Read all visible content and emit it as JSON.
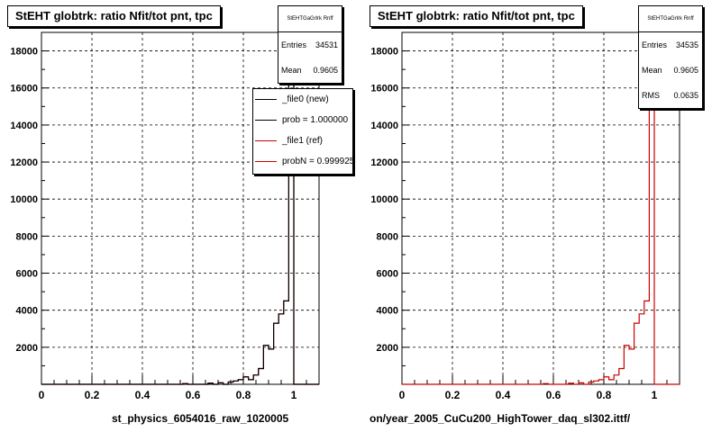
{
  "colors": {
    "new": "#000000",
    "ref": "#cc0000"
  },
  "footer_text": "",
  "pads": [
    {
      "title": "StEHT globtrk: ratio Nfit/tot pnt, tpc",
      "stats": {
        "header": "StEHTGaGrlrk Rnff",
        "rows": [
          {
            "label": "Entries",
            "value": "34531"
          },
          {
            "label": "Mean",
            "value": "0.9605"
          }
        ]
      },
      "legend": [
        {
          "label": "_file0 (new)",
          "color": "#000000"
        },
        {
          "label": "prob = 1.000000",
          "color": "#000000"
        },
        {
          "label": "_file1 (ref)",
          "color": "#cc0000"
        },
        {
          "label": "probN = 0.999925",
          "color": "#cc0000"
        }
      ],
      "xtitle": "st_physics_6054016_raw_1020005"
    },
    {
      "title": "StEHT globtrk: ratio Nfit/tot pnt, tpc",
      "stats": {
        "header": "StEHTGaGrlrk Rnff",
        "rows": [
          {
            "label": "Entries",
            "value": "34535"
          },
          {
            "label": "Mean",
            "value": "0.9605"
          },
          {
            "label": "RMS",
            "value": "0.0635"
          }
        ]
      },
      "legend": [],
      "xtitle": "on/year_2005_CuCu200_HighTower_daq_sl302.ittf/"
    }
  ],
  "chart_data": [
    {
      "type": "bar",
      "title": "StEHT globtrk: ratio Nfit/tot pnt, tpc",
      "xlabel": "st_physics_6054016_raw_1020005",
      "ylabel": "",
      "xlim": [
        0,
        1.1
      ],
      "ylim": [
        0,
        19000
      ],
      "xticks": [
        0,
        0.2,
        0.4,
        0.6,
        0.8,
        1
      ],
      "xtick_labels": [
        "0",
        "0.2",
        "0.4",
        "0.6",
        "0.8",
        "1"
      ],
      "yticks": [
        2000,
        4000,
        6000,
        8000,
        10000,
        12000,
        14000,
        16000,
        18000
      ],
      "ytick_labels": [
        "2000",
        "4000",
        "6000",
        "8000",
        "10000",
        "12000",
        "14000",
        "16000",
        "18000"
      ],
      "grid": true,
      "bin_width": 0.02,
      "series": [
        {
          "name": "_file1 (ref)",
          "color": "#cc0000",
          "bins": [
            [
              0.56,
              40
            ],
            [
              0.66,
              60
            ],
            [
              0.7,
              80
            ],
            [
              0.74,
              120
            ],
            [
              0.76,
              180
            ],
            [
              0.78,
              250
            ],
            [
              0.8,
              400
            ],
            [
              0.82,
              250
            ],
            [
              0.84,
              500
            ],
            [
              0.86,
              850
            ],
            [
              0.88,
              2100
            ],
            [
              0.9,
              1900
            ],
            [
              0.92,
              3300
            ],
            [
              0.94,
              3800
            ],
            [
              0.96,
              4500
            ],
            [
              0.98,
              18200
            ]
          ]
        },
        {
          "name": "_file0 (new)",
          "color": "#000000",
          "bins": [
            [
              0.56,
              40
            ],
            [
              0.66,
              60
            ],
            [
              0.7,
              80
            ],
            [
              0.74,
              120
            ],
            [
              0.76,
              180
            ],
            [
              0.78,
              250
            ],
            [
              0.8,
              400
            ],
            [
              0.82,
              250
            ],
            [
              0.84,
              500
            ],
            [
              0.86,
              850
            ],
            [
              0.88,
              2100
            ],
            [
              0.9,
              1900
            ],
            [
              0.92,
              3300
            ],
            [
              0.94,
              3800
            ],
            [
              0.96,
              4500
            ],
            [
              0.98,
              18200
            ]
          ]
        }
      ]
    },
    {
      "type": "bar",
      "title": "StEHT globtrk: ratio Nfit/tot pnt, tpc",
      "xlabel": "on/year_2005_CuCu200_HighTower_daq_sl302.ittf/",
      "ylabel": "",
      "xlim": [
        0,
        1.1
      ],
      "ylim": [
        0,
        19000
      ],
      "xticks": [
        0,
        0.2,
        0.4,
        0.6,
        0.8,
        1
      ],
      "xtick_labels": [
        "0",
        "0.2",
        "0.4",
        "0.6",
        "0.8",
        "1"
      ],
      "yticks": [
        2000,
        4000,
        6000,
        8000,
        10000,
        12000,
        14000,
        16000,
        18000
      ],
      "ytick_labels": [
        "2000",
        "4000",
        "6000",
        "8000",
        "10000",
        "12000",
        "14000",
        "16000",
        "18000"
      ],
      "grid": true,
      "bin_width": 0.02,
      "series": [
        {
          "name": "",
          "color": "#cc0000",
          "bins": [
            [
              0.56,
              40
            ],
            [
              0.66,
              60
            ],
            [
              0.7,
              80
            ],
            [
              0.74,
              120
            ],
            [
              0.76,
              180
            ],
            [
              0.78,
              250
            ],
            [
              0.8,
              400
            ],
            [
              0.82,
              250
            ],
            [
              0.84,
              500
            ],
            [
              0.86,
              850
            ],
            [
              0.88,
              2100
            ],
            [
              0.9,
              1900
            ],
            [
              0.92,
              3300
            ],
            [
              0.94,
              3800
            ],
            [
              0.96,
              4500
            ],
            [
              0.98,
              18200
            ]
          ]
        }
      ]
    }
  ]
}
